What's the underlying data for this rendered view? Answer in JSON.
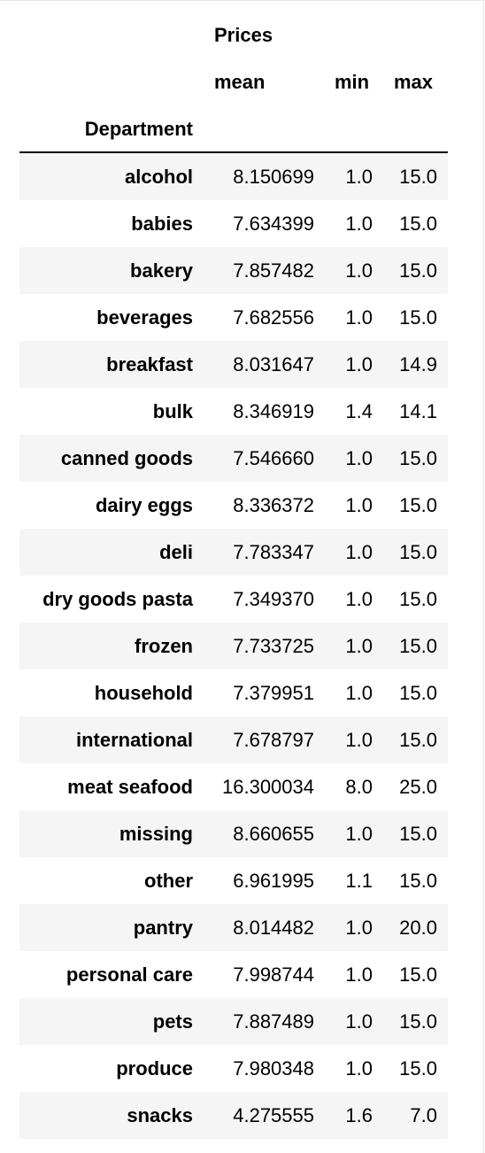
{
  "table": {
    "header_group": "Prices",
    "columns": [
      "mean",
      "min",
      "max"
    ],
    "index_name": "Department",
    "rows": [
      {
        "department": "alcohol",
        "mean": "8.150699",
        "min": "1.0",
        "max": "15.0"
      },
      {
        "department": "babies",
        "mean": "7.634399",
        "min": "1.0",
        "max": "15.0"
      },
      {
        "department": "bakery",
        "mean": "7.857482",
        "min": "1.0",
        "max": "15.0"
      },
      {
        "department": "beverages",
        "mean": "7.682556",
        "min": "1.0",
        "max": "15.0"
      },
      {
        "department": "breakfast",
        "mean": "8.031647",
        "min": "1.0",
        "max": "14.9"
      },
      {
        "department": "bulk",
        "mean": "8.346919",
        "min": "1.4",
        "max": "14.1"
      },
      {
        "department": "canned goods",
        "mean": "7.546660",
        "min": "1.0",
        "max": "15.0"
      },
      {
        "department": "dairy eggs",
        "mean": "8.336372",
        "min": "1.0",
        "max": "15.0"
      },
      {
        "department": "deli",
        "mean": "7.783347",
        "min": "1.0",
        "max": "15.0"
      },
      {
        "department": "dry goods pasta",
        "mean": "7.349370",
        "min": "1.0",
        "max": "15.0"
      },
      {
        "department": "frozen",
        "mean": "7.733725",
        "min": "1.0",
        "max": "15.0"
      },
      {
        "department": "household",
        "mean": "7.379951",
        "min": "1.0",
        "max": "15.0"
      },
      {
        "department": "international",
        "mean": "7.678797",
        "min": "1.0",
        "max": "15.0"
      },
      {
        "department": "meat seafood",
        "mean": "16.300034",
        "min": "8.0",
        "max": "25.0"
      },
      {
        "department": "missing",
        "mean": "8.660655",
        "min": "1.0",
        "max": "15.0"
      },
      {
        "department": "other",
        "mean": "6.961995",
        "min": "1.1",
        "max": "15.0"
      },
      {
        "department": "pantry",
        "mean": "8.014482",
        "min": "1.0",
        "max": "20.0"
      },
      {
        "department": "personal care",
        "mean": "7.998744",
        "min": "1.0",
        "max": "15.0"
      },
      {
        "department": "pets",
        "mean": "7.887489",
        "min": "1.0",
        "max": "15.0"
      },
      {
        "department": "produce",
        "mean": "7.980348",
        "min": "1.0",
        "max": "15.0"
      },
      {
        "department": "snacks",
        "mean": "4.275555",
        "min": "1.6",
        "max": "7.0"
      }
    ]
  },
  "colors": {
    "stripe": "#f5f5f5",
    "rule": "#000000",
    "text": "#000000"
  }
}
